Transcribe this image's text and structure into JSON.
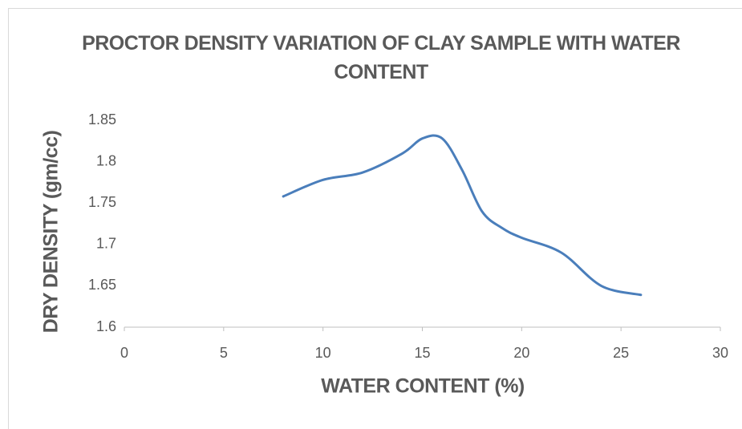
{
  "chart_data": {
    "type": "line",
    "title": "PROCTOR DENSITY VARIATION OF CLAY SAMPLE WITH WATER CONTENT",
    "x_label": "WATER CONTENT (%)",
    "y_label": "DRY DENSITY (gm/cc)",
    "x": [
      8,
      10,
      12,
      14,
      15,
      16,
      17,
      18,
      19,
      20,
      22,
      24,
      26
    ],
    "series": [
      {
        "name": "Dry density",
        "color": "#4a7ebb",
        "values": [
          1.758,
          1.778,
          1.787,
          1.81,
          1.828,
          1.828,
          1.79,
          1.74,
          1.72,
          1.708,
          1.69,
          1.65,
          1.639
        ]
      }
    ],
    "xlim": [
      0,
      30
    ],
    "xticks": [
      0,
      5,
      10,
      15,
      20,
      25,
      30
    ],
    "ylim": [
      1.6,
      1.85
    ],
    "yticks": [
      1.6,
      1.65,
      1.7,
      1.75,
      1.8,
      1.85
    ],
    "grid": false
  }
}
